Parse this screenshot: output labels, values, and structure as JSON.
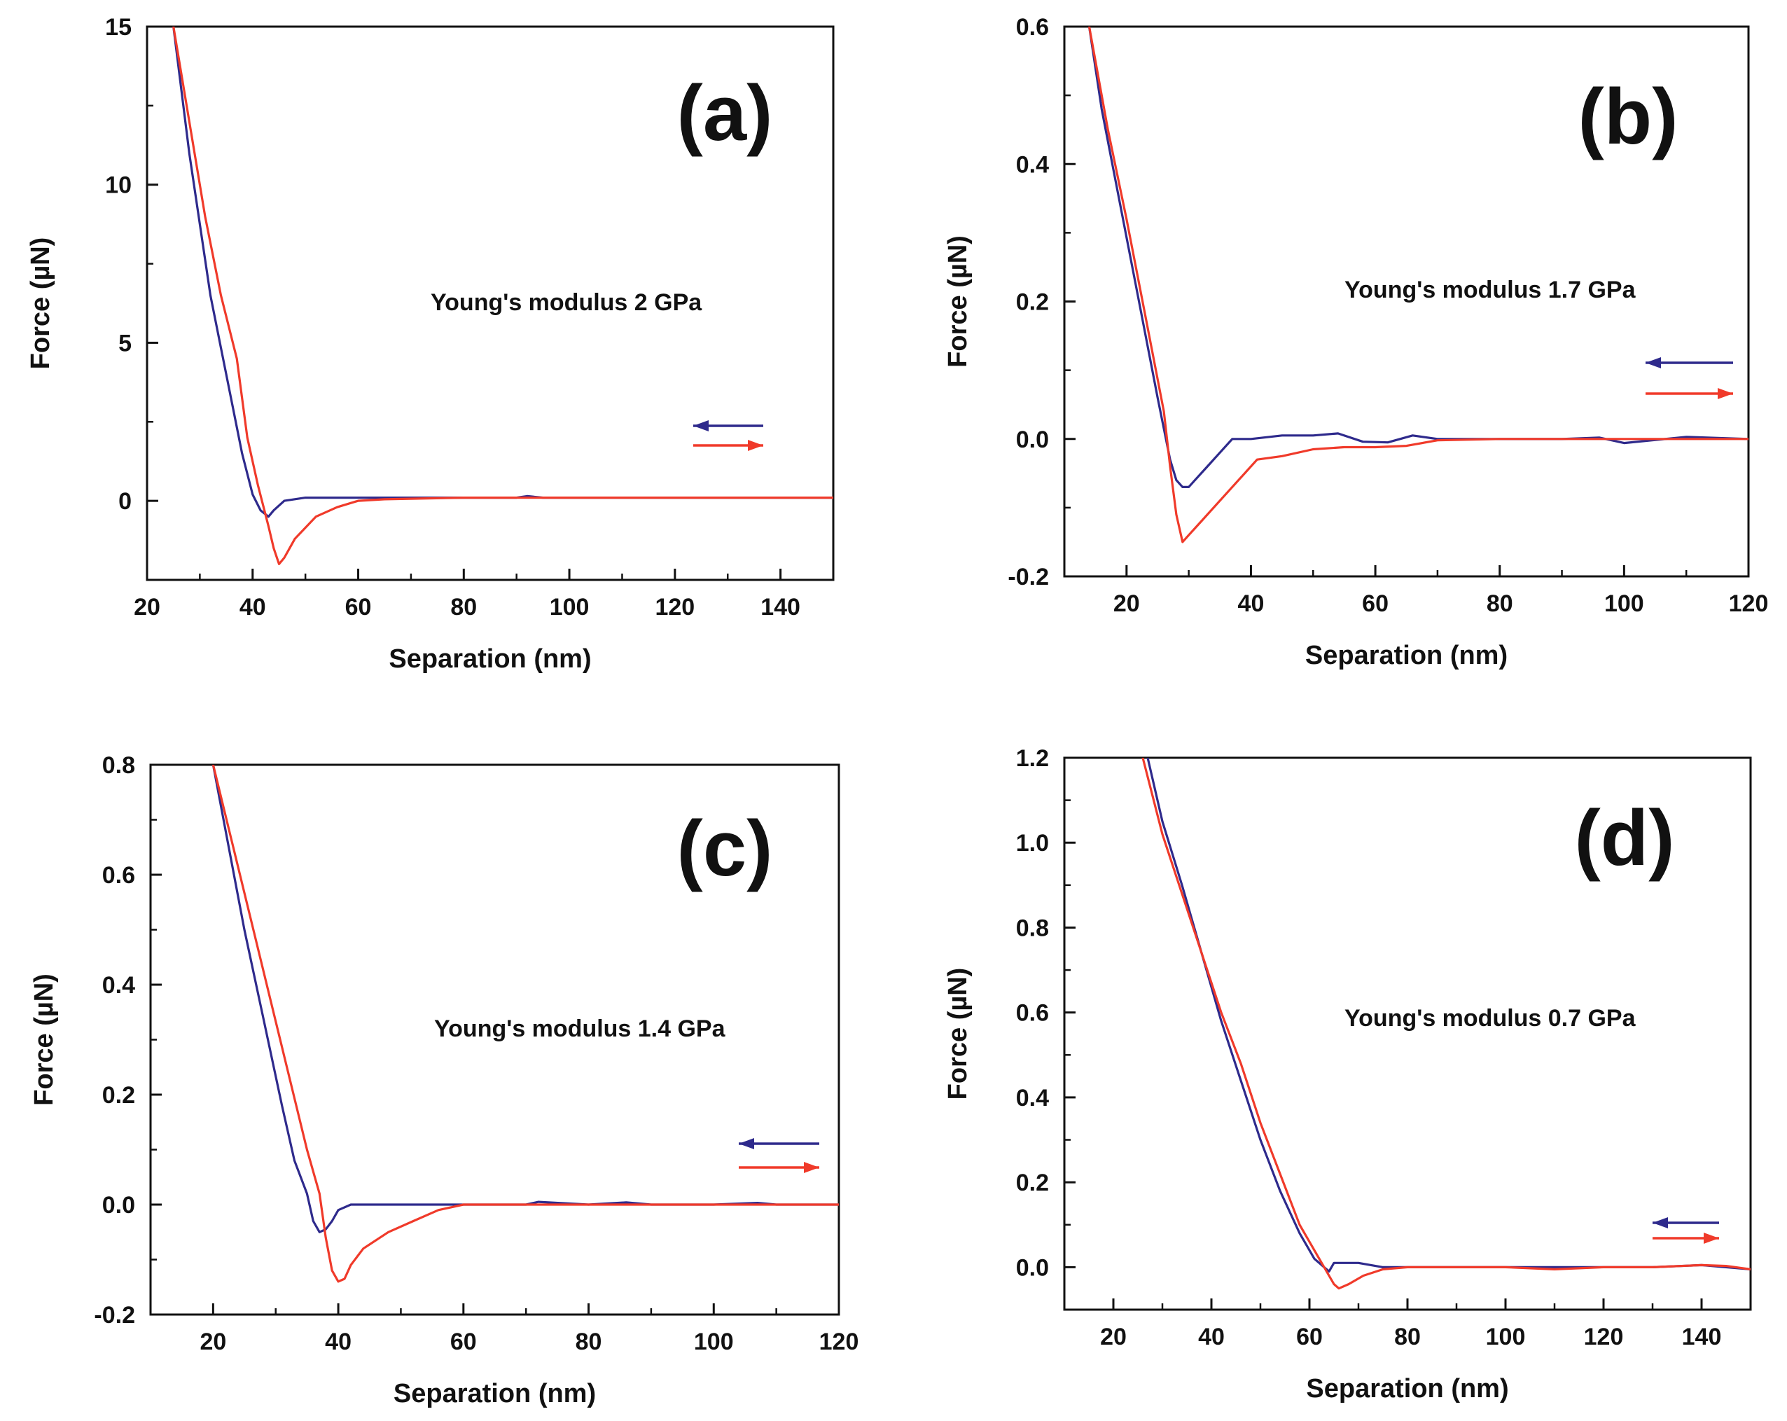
{
  "figure": {
    "colors": {
      "approach": "#2e2a8c",
      "retract": "#f03a2a",
      "axis": "#111111"
    }
  },
  "chart_data": [
    {
      "id": "a",
      "type": "line",
      "panel_label": "(a)",
      "annotation": "Young's modulus 2 GPa",
      "xlabel": "Separation (nm)",
      "ylabel": "Force (µN)",
      "xlim": [
        20,
        150
      ],
      "ylim": [
        -2.5,
        15
      ],
      "xticks": [
        20,
        40,
        60,
        80,
        100,
        120,
        140
      ],
      "yticks": [
        0,
        5,
        10,
        15
      ],
      "legend": "right, two arrows",
      "series": [
        {
          "name": "approach",
          "color": "#2e2a8c",
          "arrow": "left",
          "x": [
            25,
            28,
            32,
            35,
            38,
            40,
            41.5,
            43,
            44,
            46,
            50,
            60,
            70,
            80,
            90,
            92,
            95,
            100,
            120,
            140,
            150
          ],
          "y": [
            15,
            11,
            6.5,
            4,
            1.5,
            0.2,
            -0.3,
            -0.5,
            -0.3,
            0.0,
            0.1,
            0.1,
            0.1,
            0.1,
            0.1,
            0.15,
            0.1,
            0.1,
            0.1,
            0.1,
            0.1
          ]
        },
        {
          "name": "retract",
          "color": "#f03a2a",
          "arrow": "right",
          "x": [
            25,
            28,
            31,
            34,
            37,
            39,
            41,
            43,
            44,
            45,
            46,
            48,
            52,
            56,
            60,
            65,
            80,
            100,
            120,
            140,
            150
          ],
          "y": [
            15,
            12,
            9,
            6.5,
            4.5,
            2,
            0.5,
            -0.8,
            -1.5,
            -2.0,
            -1.8,
            -1.2,
            -0.5,
            -0.2,
            0.0,
            0.05,
            0.1,
            0.1,
            0.1,
            0.1,
            0.1
          ]
        }
      ]
    },
    {
      "id": "b",
      "type": "line",
      "panel_label": "(b)",
      "annotation": "Young's modulus 1.7 GPa",
      "xlabel": "Separation (nm)",
      "ylabel": "Force (µN)",
      "xlim": [
        10,
        120
      ],
      "ylim": [
        -0.2,
        0.6
      ],
      "xticks": [
        20,
        40,
        60,
        80,
        100,
        120
      ],
      "yticks": [
        -0.2,
        0.0,
        0.2,
        0.4,
        0.6
      ],
      "yprecision": 1,
      "legend": "right, two arrows",
      "series": [
        {
          "name": "approach",
          "color": "#2e2a8c",
          "arrow": "left",
          "x": [
            14,
            16,
            19,
            22,
            25,
            27,
            28,
            29,
            30,
            31,
            33,
            35,
            37,
            40,
            45,
            50,
            54,
            58,
            62,
            66,
            70,
            80,
            90,
            96,
            100,
            110,
            120
          ],
          "y": [
            0.6,
            0.48,
            0.34,
            0.2,
            0.06,
            -0.03,
            -0.06,
            -0.07,
            -0.07,
            -0.06,
            -0.04,
            -0.02,
            0.0,
            0.0,
            0.005,
            0.005,
            0.008,
            -0.004,
            -0.005,
            0.005,
            0.0,
            0.0,
            0.0,
            0.002,
            -0.006,
            0.003,
            0.0
          ]
        },
        {
          "name": "retract",
          "color": "#f03a2a",
          "arrow": "right",
          "x": [
            14,
            17,
            20,
            23,
            26,
            27,
            28,
            29,
            30,
            32,
            35,
            38,
            41,
            45,
            50,
            55,
            60,
            65,
            70,
            80,
            90,
            100,
            110,
            120
          ],
          "y": [
            0.6,
            0.45,
            0.32,
            0.18,
            0.04,
            -0.04,
            -0.11,
            -0.15,
            -0.14,
            -0.12,
            -0.09,
            -0.06,
            -0.03,
            -0.025,
            -0.015,
            -0.012,
            -0.012,
            -0.01,
            -0.002,
            0.0,
            0.0,
            0.0,
            0.0,
            0.0
          ]
        }
      ]
    },
    {
      "id": "c",
      "type": "line",
      "panel_label": "(c)",
      "annotation": "Young's modulus 1.4 GPa",
      "xlabel": "Separation (nm)",
      "ylabel": "Force (µN)",
      "xlim": [
        10,
        120
      ],
      "ylim": [
        -0.2,
        0.8
      ],
      "xticks": [
        20,
        40,
        60,
        80,
        100,
        120
      ],
      "yticks": [
        -0.2,
        0.0,
        0.2,
        0.4,
        0.6,
        0.8
      ],
      "yprecision": 1,
      "legend": "right, two arrows",
      "series": [
        {
          "name": "approach",
          "color": "#2e2a8c",
          "arrow": "left",
          "x": [
            20,
            22,
            25,
            28,
            31,
            33,
            35,
            36,
            37,
            38,
            39,
            40,
            42,
            45,
            50,
            60,
            70,
            72,
            80,
            86,
            90,
            100,
            107,
            110,
            120
          ],
          "y": [
            0.8,
            0.68,
            0.5,
            0.34,
            0.18,
            0.08,
            0.02,
            -0.03,
            -0.05,
            -0.045,
            -0.03,
            -0.01,
            0.0,
            0.0,
            0.0,
            0.0,
            0.0,
            0.005,
            0.0,
            0.004,
            0.0,
            0.0,
            0.003,
            0.0,
            0.0
          ]
        },
        {
          "name": "retract",
          "color": "#f03a2a",
          "arrow": "right",
          "x": [
            20,
            23,
            26,
            29,
            32,
            35,
            37,
            38,
            39,
            40,
            41,
            42,
            44,
            48,
            52,
            56,
            60,
            70,
            80,
            90,
            100,
            110,
            120
          ],
          "y": [
            0.8,
            0.66,
            0.52,
            0.38,
            0.24,
            0.1,
            0.02,
            -0.06,
            -0.12,
            -0.14,
            -0.135,
            -0.11,
            -0.08,
            -0.05,
            -0.03,
            -0.01,
            0.0,
            0.0,
            0.0,
            0.0,
            0.0,
            0.0,
            0.0
          ]
        }
      ]
    },
    {
      "id": "d",
      "type": "line",
      "panel_label": "(d)",
      "annotation": "Young's modulus 0.7 GPa",
      "xlabel": "Separation (nm)",
      "ylabel": "Force (µN)",
      "xlim": [
        10,
        150
      ],
      "ylim": [
        -0.1,
        1.2
      ],
      "xticks": [
        20,
        40,
        60,
        80,
        100,
        120,
        140
      ],
      "yticks": [
        0.0,
        0.2,
        0.4,
        0.6,
        0.8,
        1.0,
        1.2
      ],
      "yprecision": 1,
      "legend": "right, two arrows",
      "series": [
        {
          "name": "approach",
          "color": "#2e2a8c",
          "arrow": "left",
          "x": [
            27,
            30,
            34,
            38,
            42,
            46,
            50,
            54,
            58,
            61,
            63,
            64,
            65,
            67,
            70,
            75,
            80,
            90,
            100,
            110,
            120,
            130,
            140,
            145,
            150
          ],
          "y": [
            1.2,
            1.05,
            0.9,
            0.74,
            0.58,
            0.44,
            0.3,
            0.18,
            0.08,
            0.02,
            0.0,
            -0.01,
            0.01,
            0.01,
            0.01,
            0.0,
            0.0,
            0.0,
            0.0,
            0.0,
            0.0,
            0.0,
            0.005,
            0.0,
            -0.005
          ]
        },
        {
          "name": "retract",
          "color": "#f03a2a",
          "arrow": "right",
          "x": [
            26,
            30,
            34,
            38,
            42,
            46,
            50,
            54,
            58,
            62,
            64,
            65,
            66,
            68,
            71,
            75,
            80,
            90,
            100,
            110,
            120,
            130,
            140,
            145,
            150
          ],
          "y": [
            1.2,
            1.02,
            0.88,
            0.74,
            0.6,
            0.48,
            0.34,
            0.22,
            0.1,
            0.02,
            -0.02,
            -0.04,
            -0.05,
            -0.04,
            -0.02,
            -0.005,
            0.0,
            0.0,
            0.0,
            -0.005,
            0.0,
            0.0,
            0.005,
            0.003,
            -0.005
          ]
        }
      ]
    }
  ]
}
